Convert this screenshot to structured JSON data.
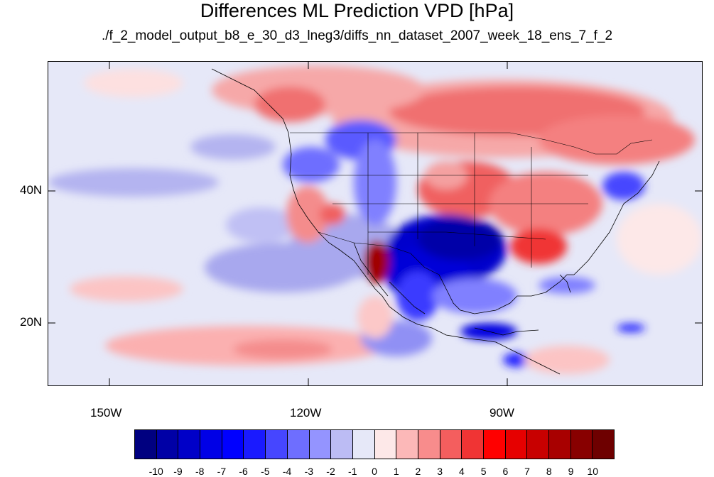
{
  "title": "Differences ML Prediction VPD [hPa]",
  "subtitle": "./f_2_model_output_b8_e_30_d3_lneg3/diffs_nn_dataset_2007_week_18_ens_7_f_2",
  "map": {
    "lon_labels": [
      "150W",
      "120W",
      "90W"
    ],
    "lat_labels": [
      "40N",
      "20N"
    ]
  },
  "colorbar": {
    "labels": [
      "-10",
      "-9",
      "-8",
      "-7",
      "-6",
      "-5",
      "-4",
      "-3",
      "-2",
      "-1",
      "0",
      "1",
      "2",
      "3",
      "4",
      "5",
      "6",
      "7",
      "8",
      "9",
      "10"
    ],
    "colors": [
      "#000080",
      "#0000a6",
      "#0000c8",
      "#0000e6",
      "#0000ff",
      "#1a1aff",
      "#4646ff",
      "#6e6eff",
      "#9494ff",
      "#bcbcf4",
      "#e6e8f8",
      "#fde8e8",
      "#fcb8b8",
      "#f88c8c",
      "#f45e5e",
      "#f03434",
      "#ff0000",
      "#e60000",
      "#c80000",
      "#a80000",
      "#880000",
      "#6e0000"
    ]
  }
}
